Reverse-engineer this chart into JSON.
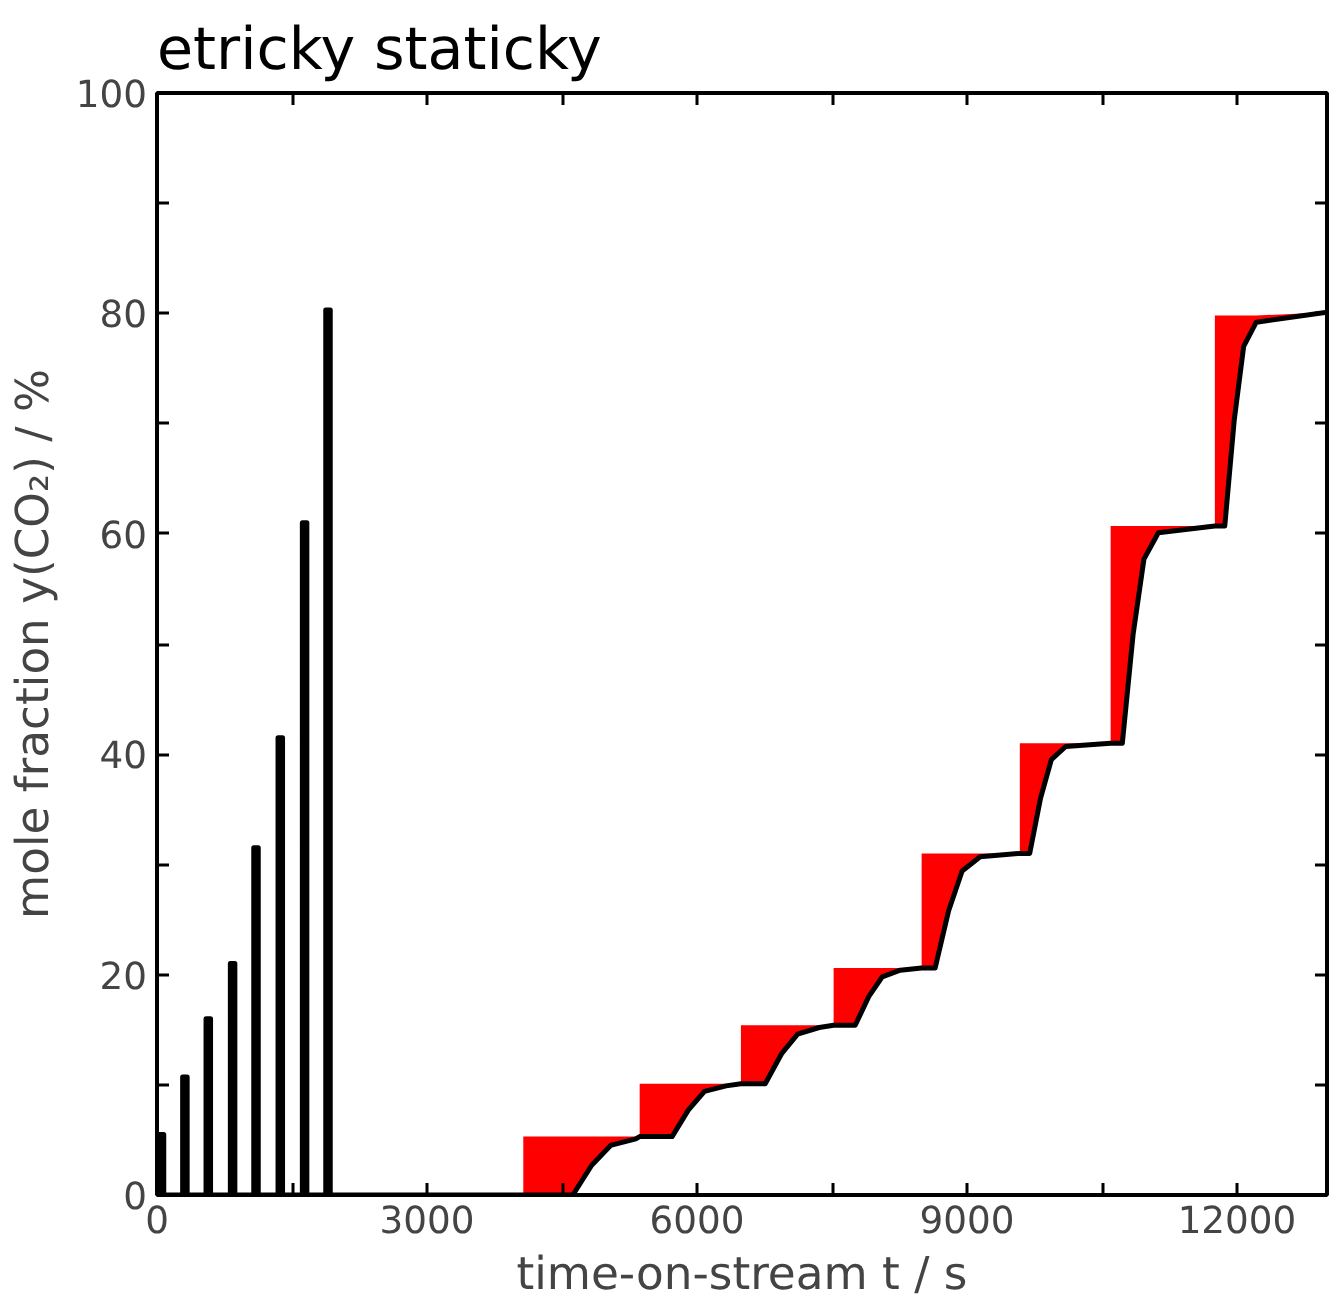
{
  "chart_data": {
    "type": "line",
    "title": "etricky staticky",
    "xlabel": "time-on-stream t / s",
    "ylabel": "mole fraction y(CO₂) / %",
    "xlim": [
      0,
      13000
    ],
    "ylim": [
      0,
      100
    ],
    "xticks": [
      0,
      {
        "value": 1500,
        "label": null
      },
      3000,
      {
        "value": 4500,
        "label": null
      },
      6000,
      {
        "value": 7500,
        "label": null
      },
      9000,
      {
        "value": 10500,
        "label": null
      },
      12000
    ],
    "yticks": [
      0,
      {
        "value": 10,
        "label": null
      },
      20,
      {
        "value": 30,
        "label": null
      },
      40,
      {
        "value": 50,
        "label": null
      },
      60,
      {
        "value": 70,
        "label": null
      },
      80,
      {
        "value": 90,
        "label": null
      },
      100
    ],
    "grid": false,
    "marker": "none",
    "line_style": "solid",
    "series": [
      {
        "color": "#000000",
        "x": [
          0,
          25,
          25,
          75,
          75,
          285,
          285,
          335,
          335,
          545,
          545,
          595,
          595,
          815,
          815,
          865,
          865,
          1075,
          1075,
          1125,
          1125,
          1345,
          1345,
          1395,
          1395,
          1615,
          1615,
          1665,
          1665,
          1875,
          1875,
          1925,
          1925,
          4070,
          4070,
          4620,
          4830,
          5040,
          5320,
          5363,
          5363,
          5723,
          5903,
          6083,
          6323,
          6488,
          6488,
          6758,
          6938,
          7118,
          7358,
          7518,
          7518,
          7758,
          7908,
          8058,
          8258,
          8496,
          8496,
          8646,
          8796,
          8946,
          9146,
          9587,
          9587,
          9697,
          9817,
          9937,
          10097,
          10596,
          10596,
          10726,
          10846,
          10966,
          11126,
          11754,
          11754,
          11864,
          11969,
          12074,
          12214,
          13000
        ],
        "values": [
          0,
          0,
          5.5,
          5.5,
          0,
          0,
          10.7,
          10.7,
          0,
          0,
          16,
          16,
          0,
          0,
          21,
          21,
          0,
          0,
          31.5,
          31.5,
          0,
          0,
          41.5,
          41.5,
          0,
          0,
          61,
          61,
          0,
          0,
          80.3,
          80.3,
          0,
          0,
          0,
          0,
          2.7,
          4.5,
          5.1,
          5.3,
          5.3,
          5.3,
          7.7,
          9.4,
          9.9,
          10.1,
          10.1,
          10.1,
          12.8,
          14.6,
          15.2,
          15.4,
          15.4,
          15.4,
          18,
          19.8,
          20.4,
          20.6,
          20.6,
          20.6,
          25.8,
          29.4,
          30.7,
          31,
          31,
          31,
          36,
          39.5,
          40.7,
          41,
          41,
          41,
          50.9,
          57.7,
          60.1,
          60.7,
          60.7,
          60.7,
          70.3,
          77,
          79.2,
          80.1
        ],
        "lower": [
          0,
          0,
          5.5,
          5.5,
          0,
          0,
          10.7,
          10.7,
          0,
          0,
          16,
          16,
          0,
          0,
          21,
          21,
          0,
          0,
          31.5,
          31.5,
          0,
          0,
          41.5,
          41.5,
          0,
          0,
          61,
          61,
          0,
          0,
          80.3,
          80.3,
          0,
          0,
          0,
          0,
          2.7,
          4.5,
          5.1,
          5.3,
          5.3,
          5.3,
          7.7,
          9.4,
          9.9,
          10.1,
          10.1,
          10.1,
          12.8,
          14.6,
          15.2,
          15.4,
          15.4,
          15.4,
          18,
          19.8,
          20.4,
          20.6,
          20.6,
          20.6,
          25.8,
          29.4,
          30.7,
          31,
          31,
          31,
          36,
          39.5,
          40.7,
          41,
          41,
          41,
          50.9,
          57.7,
          60.1,
          60.7,
          60.7,
          60.7,
          70.3,
          77,
          79.2,
          80.1
        ],
        "upper": [
          0,
          0,
          5.5,
          5.5,
          0,
          0,
          10.7,
          10.7,
          0,
          0,
          16,
          16,
          0,
          0,
          21,
          21,
          0,
          0,
          31.5,
          31.5,
          0,
          0,
          41.5,
          41.5,
          0,
          0,
          61,
          61,
          0,
          0,
          80.3,
          80.3,
          0,
          0,
          5.3,
          5.3,
          5.3,
          5.3,
          5.3,
          5.3,
          10.1,
          10.1,
          10.1,
          10.1,
          10.1,
          10.1,
          15.4,
          15.4,
          15.4,
          15.4,
          15.4,
          15.4,
          20.6,
          20.6,
          20.6,
          20.6,
          20.6,
          20.6,
          31,
          31,
          31,
          31,
          31,
          31,
          41,
          41,
          41,
          41,
          41,
          41,
          60.7,
          60.7,
          60.7,
          60.7,
          60.7,
          60.7,
          79.8,
          79.8,
          79.8,
          79.8,
          79.8,
          80.1
        ]
      }
    ]
  }
}
